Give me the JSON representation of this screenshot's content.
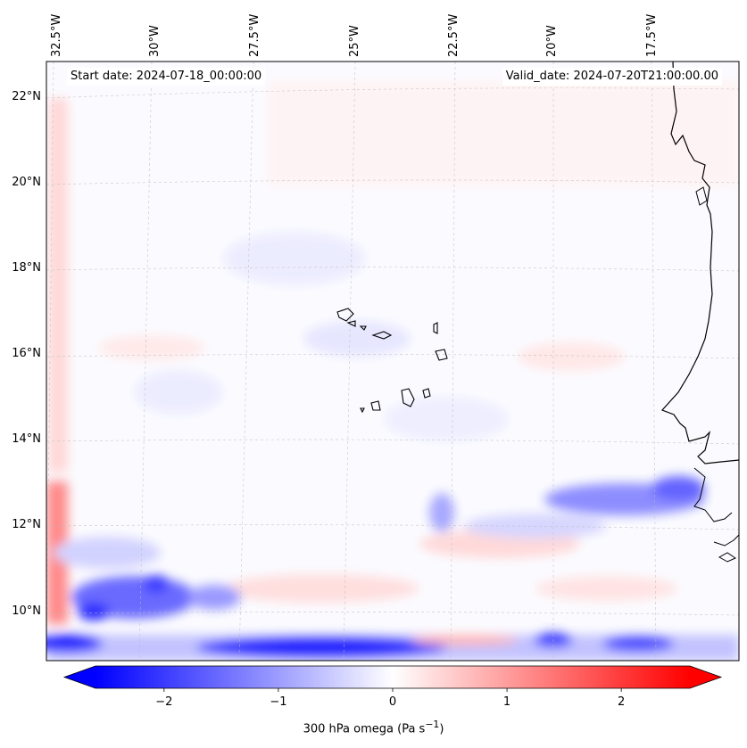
{
  "map": {
    "start_date": "Start date: 2024-07-18_00:00:00",
    "valid_date": "Valid_date: 2024-07-20T21:00:00.00",
    "lon_labels": [
      "32.5°W",
      "30°W",
      "27.5°W",
      "25°W",
      "22.5°W",
      "20°W",
      "17.5°W"
    ],
    "lat_labels": [
      "22°N",
      "20°N",
      "18°N",
      "16°N",
      "14°N",
      "12°N",
      "10°N"
    ],
    "variable": "300 hPa omega",
    "units": "Pa s",
    "units_exponent": "−1",
    "colormap": "bwr",
    "colors": {
      "negative": "#0000ff",
      "zero": "#ffffff",
      "positive": "#ff0000",
      "coastline": "#000000"
    }
  },
  "colorbar": {
    "ticks": [
      "−2",
      "−1",
      "0",
      "1",
      "2"
    ],
    "range": [
      -2.6,
      2.6
    ],
    "extend": "both"
  }
}
